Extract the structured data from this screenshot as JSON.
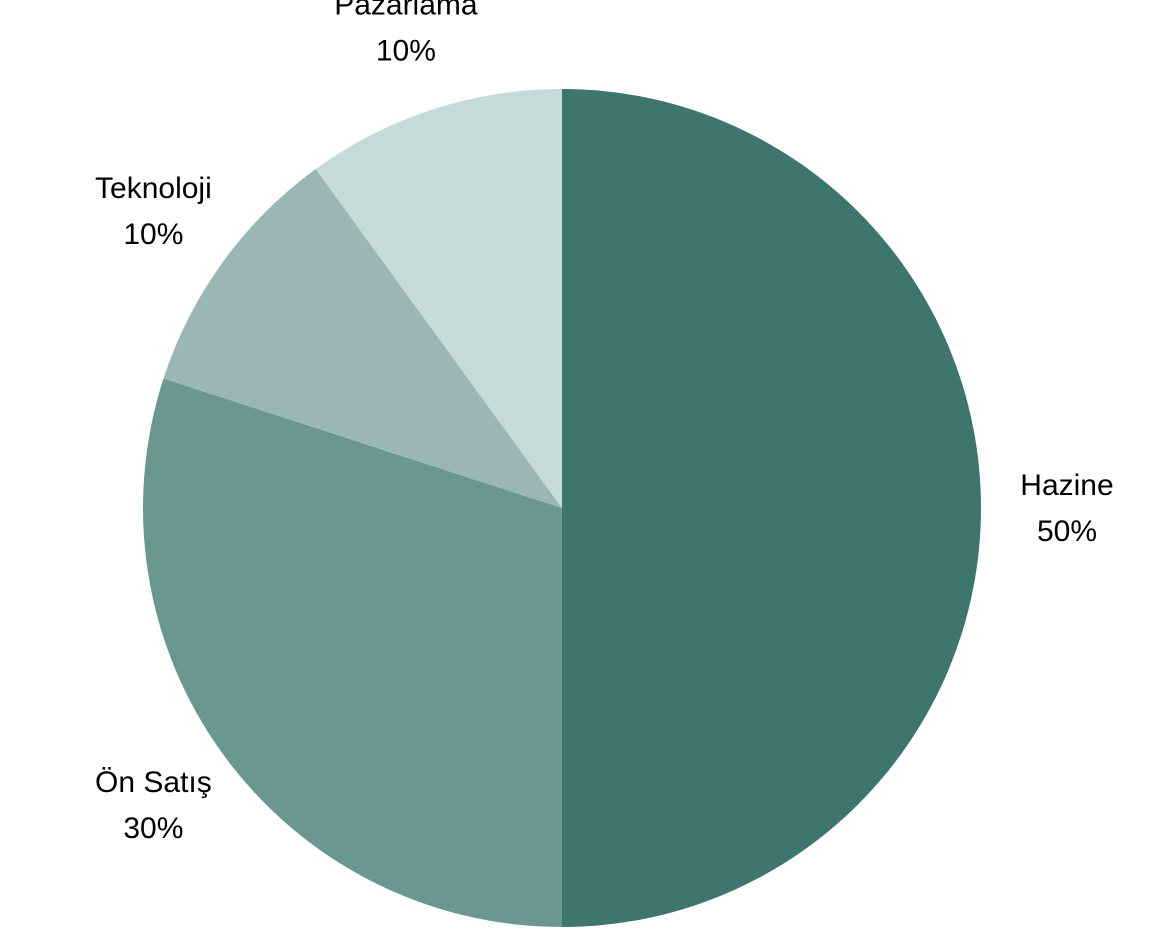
{
  "chart_data": {
    "type": "pie",
    "title": "",
    "start_angle_deg": 0,
    "direction": "clockwise",
    "slices": [
      {
        "label": "Hazine",
        "value": 50,
        "value_label": "50%",
        "color": "#3e756e"
      },
      {
        "label": "Ön Satış",
        "value": 30,
        "value_label": "30%",
        "color": "#6a9790"
      },
      {
        "label": "Teknoloji",
        "value": 10,
        "value_label": "10%",
        "color": "#9ab7b5"
      },
      {
        "label": "Pazarlama",
        "value": 10,
        "value_label": "10%",
        "color": "#c5dbd9"
      }
    ]
  }
}
